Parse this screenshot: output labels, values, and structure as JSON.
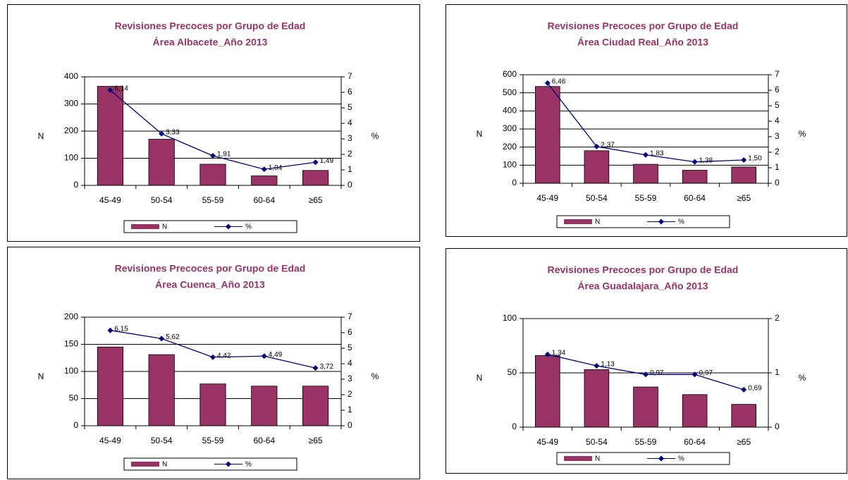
{
  "chart_data": [
    {
      "type": "bar",
      "title": "Revisiones Precoces por Grupo de Edad",
      "subtitle": "Área Albacete_Año 2013",
      "categories": [
        "45-49",
        "50-54",
        "55-59",
        "60-64",
        "≥65"
      ],
      "series": [
        {
          "name": "N",
          "color": "#993366",
          "values": [
            365,
            170,
            78,
            35,
            55
          ]
        },
        {
          "name": "%",
          "type": "line",
          "axis": "y2",
          "color": "#000080",
          "values": [
            6.14,
            3.33,
            1.91,
            1.04,
            1.49
          ],
          "value_labels": [
            "6,14",
            "3,33",
            "1,91",
            "1,04",
            "1,49"
          ]
        }
      ],
      "y_label": "N",
      "y2_label": "%",
      "ylim": [
        0,
        400
      ],
      "yticks": [
        0,
        100,
        200,
        300,
        400
      ],
      "y2lim": [
        0,
        7
      ],
      "y2ticks": [
        0,
        1,
        2,
        3,
        4,
        5,
        6,
        7
      ],
      "grid": true,
      "legend": "bottom"
    },
    {
      "type": "bar",
      "title": "Revisiones Precoces por Grupo de Edad",
      "subtitle": "Área Ciudad Real_Año 2013",
      "categories": [
        "45-49",
        "50-54",
        "55-59",
        "60-64",
        "≥65"
      ],
      "series": [
        {
          "name": "N",
          "color": "#993366",
          "values": [
            535,
            180,
            105,
            72,
            90
          ]
        },
        {
          "name": "%",
          "type": "line",
          "axis": "y2",
          "color": "#000080",
          "values": [
            6.46,
            2.37,
            1.83,
            1.38,
            1.5
          ],
          "value_labels": [
            "6,46",
            "2,37",
            "1,83",
            "1,38",
            "1,50"
          ]
        }
      ],
      "y_label": "N",
      "y2_label": "%",
      "ylim": [
        0,
        600
      ],
      "yticks": [
        0,
        100,
        200,
        300,
        400,
        500,
        600
      ],
      "y2lim": [
        0,
        7
      ],
      "y2ticks": [
        0,
        1,
        2,
        3,
        4,
        5,
        6,
        7
      ],
      "grid": true,
      "legend": "bottom"
    },
    {
      "type": "bar",
      "title": "Revisiones Precoces por Grupo de Edad",
      "subtitle": "Área Cuenca_Año 2013",
      "categories": [
        "45-49",
        "50-54",
        "55-59",
        "60-64",
        "≥65"
      ],
      "series": [
        {
          "name": "N",
          "color": "#993366",
          "values": [
            145,
            131,
            77,
            73,
            73
          ]
        },
        {
          "name": "%",
          "type": "line",
          "axis": "y2",
          "color": "#000080",
          "values": [
            6.15,
            5.62,
            4.42,
            4.49,
            3.72
          ],
          "value_labels": [
            "6,15",
            "5,62",
            "4,42",
            "4,49",
            "3,72"
          ]
        }
      ],
      "y_label": "N",
      "y2_label": "%",
      "ylim": [
        0,
        200
      ],
      "yticks": [
        0,
        50,
        100,
        150,
        200
      ],
      "y2lim": [
        0,
        7
      ],
      "y2ticks": [
        0,
        1,
        2,
        3,
        4,
        5,
        6,
        7
      ],
      "grid": true,
      "legend": "bottom"
    },
    {
      "type": "bar",
      "title": "Revisiones Precoces por Grupo de Edad",
      "subtitle": "Área Guadalajara_Año 2013",
      "categories": [
        "45-49",
        "50-54",
        "55-59",
        "60-64",
        "≥65"
      ],
      "series": [
        {
          "name": "N",
          "color": "#993366",
          "values": [
            66,
            53,
            37,
            30,
            21
          ]
        },
        {
          "name": "%",
          "type": "line",
          "axis": "y2",
          "color": "#000080",
          "values": [
            1.34,
            1.13,
            0.97,
            0.97,
            0.69
          ],
          "value_labels": [
            "1,34",
            "1,13",
            "0,97",
            "0,97",
            "0,69"
          ]
        }
      ],
      "y_label": "N",
      "y2_label": "%",
      "ylim": [
        0,
        100
      ],
      "yticks": [
        0,
        50,
        100
      ],
      "y2lim": [
        0,
        2
      ],
      "y2ticks": [
        0,
        1,
        2
      ],
      "grid": true,
      "legend": "bottom"
    }
  ]
}
